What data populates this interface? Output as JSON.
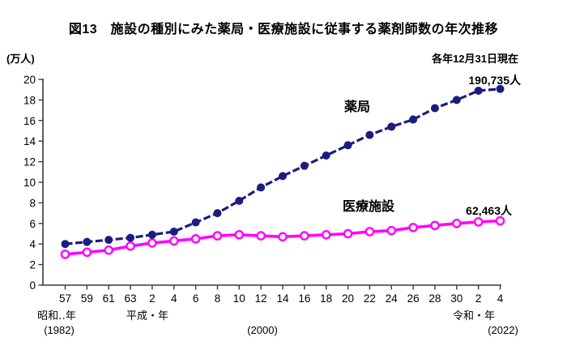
{
  "chart_data": {
    "type": "line",
    "title": "図13　施設の種別にみた薬局・医療施設に従事する薬剤師数の年次推移",
    "unit_label": "(万人)",
    "note": "各年12月31日現在",
    "ylim": [
      0,
      20
    ],
    "ytick_step": 2,
    "grid": false,
    "legend_position": "inline-labels",
    "axis_color": "#3a3a3a",
    "x_axis": {
      "tick_labels": [
        "57",
        "59",
        "61",
        "63",
        "2",
        "4",
        "6",
        "8",
        "10",
        "12",
        "14",
        "16",
        "18",
        "20",
        "22",
        "24",
        "26",
        "28",
        "30",
        "2",
        "4"
      ],
      "era_line1": [
        "昭和‥年",
        "平成・年",
        "令和・年"
      ],
      "era_line2": [
        "(1982)",
        "(2000)",
        "(2022)"
      ]
    },
    "series": [
      {
        "name": "薬局",
        "color": "#1c1c80",
        "line_style": "dashed",
        "marker": "filled-circle",
        "end_label": "190,735人",
        "values": [
          4.0,
          4.2,
          4.4,
          4.6,
          4.9,
          5.2,
          6.1,
          7.0,
          8.2,
          9.5,
          10.6,
          11.6,
          12.6,
          13.6,
          14.6,
          15.4,
          16.1,
          17.2,
          18.0,
          18.9,
          19.07
        ]
      },
      {
        "name": "医療施設",
        "color": "#ff00ff",
        "line_style": "solid",
        "marker": "open-circle",
        "end_label": "62,463人",
        "values": [
          3.0,
          3.2,
          3.4,
          3.8,
          4.1,
          4.3,
          4.5,
          4.8,
          4.9,
          4.8,
          4.7,
          4.8,
          4.9,
          5.0,
          5.2,
          5.3,
          5.6,
          5.8,
          6.0,
          6.15,
          6.25
        ]
      }
    ]
  }
}
